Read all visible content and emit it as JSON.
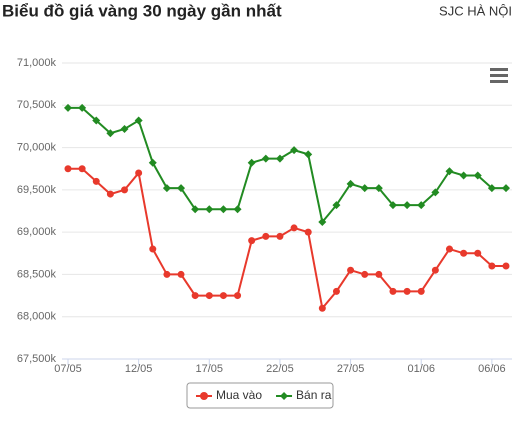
{
  "chart_data": {
    "type": "line",
    "title": "Biểu đồ giá vàng 30 ngày gần nhất",
    "subtitle": "SJC HÀ NỘI",
    "categories": [
      "07/05",
      null,
      null,
      null,
      null,
      "12/05",
      null,
      null,
      null,
      null,
      "17/05",
      null,
      null,
      null,
      null,
      "22/05",
      null,
      null,
      null,
      null,
      "27/05",
      null,
      null,
      null,
      null,
      "01/06",
      null,
      null,
      null,
      null,
      "06/06",
      null
    ],
    "series": [
      {
        "name": "Mua vào",
        "color": "#e8392c",
        "values": [
          69750,
          69750,
          69600,
          69450,
          69500,
          69700,
          68800,
          68500,
          68500,
          68250,
          68250,
          68250,
          68250,
          68900,
          68950,
          68950,
          69050,
          69000,
          68100,
          68300,
          68550,
          68500,
          68500,
          68300,
          68300,
          68300,
          68550,
          68800,
          68750,
          68750,
          68600,
          68600
        ]
      },
      {
        "name": "Bán ra",
        "color": "#228b22",
        "values": [
          70470,
          70470,
          70320,
          70170,
          70220,
          70320,
          69820,
          69520,
          69520,
          69270,
          69270,
          69270,
          69270,
          69820,
          69870,
          69870,
          69970,
          69920,
          69120,
          69320,
          69570,
          69520,
          69520,
          69320,
          69320,
          69320,
          69470,
          69720,
          69670,
          69670,
          69520,
          69520
        ]
      }
    ],
    "ylim": [
      67500,
      71000
    ],
    "yticks": [
      {
        "value": 67500,
        "label": "67,500k"
      },
      {
        "value": 68000,
        "label": "68,000k"
      },
      {
        "value": 68500,
        "label": "68,500k"
      },
      {
        "value": 69000,
        "label": "69,000k"
      },
      {
        "value": 69500,
        "label": "69,500k"
      },
      {
        "value": 70000,
        "label": "70,000k"
      },
      {
        "value": 70500,
        "label": "70,500k"
      },
      {
        "value": 71000,
        "label": "71,000k"
      }
    ],
    "grid": true
  }
}
